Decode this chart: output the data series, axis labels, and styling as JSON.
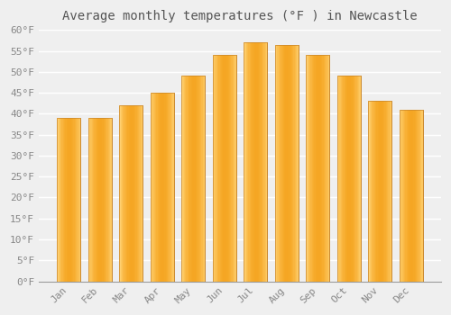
{
  "title": "Average monthly temperatures (°F ) in Newcastle",
  "months": [
    "Jan",
    "Feb",
    "Mar",
    "Apr",
    "May",
    "Jun",
    "Jul",
    "Aug",
    "Sep",
    "Oct",
    "Nov",
    "Dec"
  ],
  "values": [
    39,
    39,
    42,
    45,
    49,
    54,
    57,
    56.5,
    54,
    49,
    43,
    41
  ],
  "bar_color_center": "#F5A623",
  "bar_color_edge": "#FFD070",
  "bar_outline_color": "#C8852A",
  "ylim": [
    0,
    60
  ],
  "ytick_step": 5,
  "background_color": "#EFEFEF",
  "grid_color": "#FFFFFF",
  "title_fontsize": 10,
  "tick_fontsize": 8,
  "tick_color": "#888888",
  "title_color": "#555555",
  "font_family": "monospace",
  "bar_width": 0.75
}
